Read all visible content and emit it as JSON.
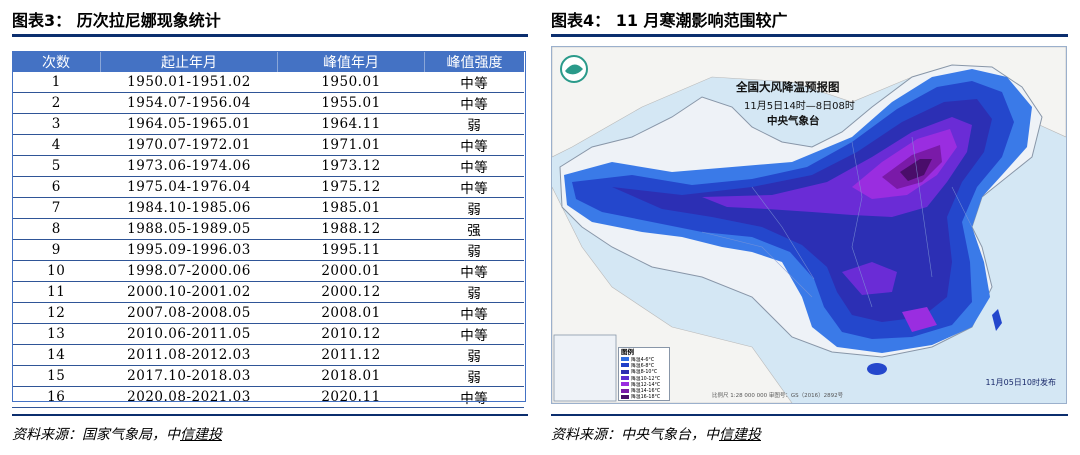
{
  "left": {
    "title": "图表3：  历次拉尼娜现象统计",
    "table": {
      "headers": [
        "次数",
        "起止年月",
        "峰值年月",
        "峰值强度"
      ],
      "rows": [
        [
          "1",
          "1950.01-1951.02",
          "1950.01",
          "中等"
        ],
        [
          "2",
          "1954.07-1956.04",
          "1955.01",
          "中等"
        ],
        [
          "3",
          "1964.05-1965.01",
          "1964.11",
          "弱"
        ],
        [
          "4",
          "1970.07-1972.01",
          "1971.01",
          "中等"
        ],
        [
          "5",
          "1973.06-1974.06",
          "1973.12",
          "中等"
        ],
        [
          "6",
          "1975.04-1976.04",
          "1975.12",
          "中等"
        ],
        [
          "7",
          "1984.10-1985.06",
          "1985.01",
          "弱"
        ],
        [
          "8",
          "1988.05-1989.05",
          "1988.12",
          "强"
        ],
        [
          "9",
          "1995.09-1996.03",
          "1995.11",
          "弱"
        ],
        [
          "10",
          "1998.07-2000.06",
          "2000.01",
          "中等"
        ],
        [
          "11",
          "2000.10-2001.02",
          "2000.12",
          "弱"
        ],
        [
          "12",
          "2007.08-2008.05",
          "2008.01",
          "中等"
        ],
        [
          "13",
          "2010.06-2011.05",
          "2010.12",
          "中等"
        ],
        [
          "14",
          "2011.08-2012.03",
          "2011.12",
          "弱"
        ],
        [
          "15",
          "2017.10-2018.03",
          "2018.01",
          "弱"
        ],
        [
          "16",
          "2020.08-2021.03",
          "2020.11",
          "中等"
        ]
      ]
    },
    "source_prefix": "资料来源：国家气象局，中",
    "source_link": "信建投"
  },
  "right": {
    "title": "图表4：  11 月寒潮影响范围较广",
    "map": {
      "title": "全国大风降温预报图",
      "period": "11月5日14时—8日08时",
      "issuer": "中央气象台",
      "legend_title": "图例",
      "legend": [
        {
          "label": "降温4-6°C",
          "color": "#2f6de0"
        },
        {
          "label": "降温6-8°C",
          "color": "#1f3fc8"
        },
        {
          "label": "降温8-10°C",
          "color": "#2d2cb0"
        },
        {
          "label": "降温10-12°C",
          "color": "#5b2ad0"
        },
        {
          "label": "降温12-14°C",
          "color": "#9a2de0"
        },
        {
          "label": "降温14-16°C",
          "color": "#7a1aa8"
        },
        {
          "label": "降温16-18°C",
          "color": "#4a0d6a"
        }
      ],
      "release_note": "11月05日10时发布",
      "scale_note": "比例尺 1:28 000 000    审图号：GS（2016）2892号"
    },
    "source_prefix": "资料来源：中央气象台，中",
    "source_link": "信建投"
  }
}
